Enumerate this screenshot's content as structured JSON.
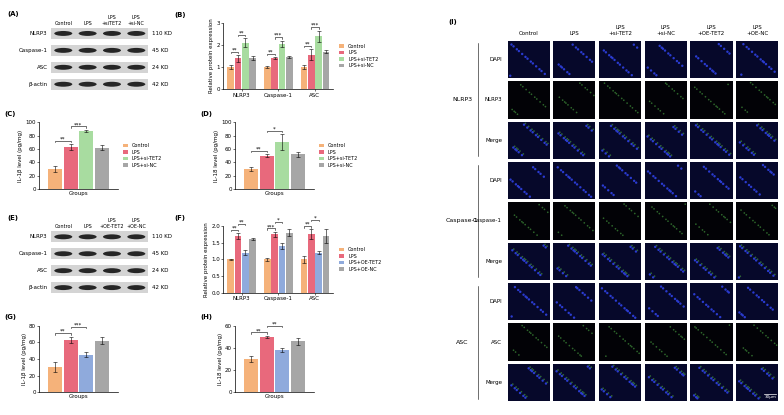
{
  "blots": [
    {
      "label": "(A)",
      "lanes": [
        "Control",
        "LPS",
        "LPS\n+siTET2",
        "LPS\n+si-NC"
      ],
      "proteins": [
        {
          "name": "NLRP3",
          "size": "110 KD"
        },
        {
          "name": "Caspase-1",
          "size": "45 KD"
        },
        {
          "name": "ASC",
          "size": "24 KD"
        },
        {
          "name": "β-actin",
          "size": "42 KD"
        }
      ]
    },
    {
      "label": "(E)",
      "lanes": [
        "Control",
        "LPS",
        "LPS\n+OE-TET2",
        "LPS\n+OE-NC"
      ],
      "proteins": [
        {
          "name": "NLRP3",
          "size": "110 KD"
        },
        {
          "name": "Caspase-1",
          "size": "45 KD"
        },
        {
          "name": "ASC",
          "size": "24 KD"
        },
        {
          "name": "β-actin",
          "size": "42 KD"
        }
      ]
    }
  ],
  "chart_data": [
    {
      "label": "(B)",
      "type": "bar",
      "categories": [
        "NLRP3",
        "Caspase-1",
        "ASC"
      ],
      "ylabel": "Relative protein expression",
      "ylim": [
        0,
        3
      ],
      "yticks": [
        0,
        1,
        2,
        3
      ],
      "legend": "right",
      "series": [
        {
          "name": "Control",
          "color": "#f5b27a",
          "values": [
            1.0,
            1.0,
            1.0
          ],
          "errors": [
            0.08,
            0.05,
            0.1
          ]
        },
        {
          "name": "LPS",
          "color": "#e8697c",
          "values": [
            1.4,
            1.4,
            1.55
          ],
          "errors": [
            0.15,
            0.05,
            0.25
          ]
        },
        {
          "name": "LPS+si-TET2",
          "color": "#a8dca0",
          "values": [
            2.1,
            2.05,
            2.4
          ],
          "errors": [
            0.2,
            0.15,
            0.25
          ]
        },
        {
          "name": "LPS+si-NC",
          "color": "#a6a6a6",
          "values": [
            1.4,
            1.45,
            1.7
          ],
          "errors": [
            0.1,
            0.05,
            0.05
          ]
        }
      ],
      "significance": [
        {
          "category": 0,
          "pair": [
            0,
            1
          ],
          "text": "**"
        },
        {
          "category": 0,
          "pair": [
            1,
            2
          ],
          "text": "**"
        },
        {
          "category": 1,
          "pair": [
            0,
            1
          ],
          "text": "**"
        },
        {
          "category": 1,
          "pair": [
            1,
            2
          ],
          "text": "***"
        },
        {
          "category": 2,
          "pair": [
            0,
            1
          ],
          "text": "**"
        },
        {
          "category": 2,
          "pair": [
            1,
            2
          ],
          "text": "***"
        }
      ]
    },
    {
      "label": "(C)",
      "type": "bar",
      "categories": [
        null
      ],
      "tick_labels": "y",
      "xlabel": "Groups",
      "ylabel": "IL-1β level (pg/mg)",
      "ylim": [
        0,
        100
      ],
      "yticks": [
        0,
        20,
        40,
        60,
        80,
        100
      ],
      "legend": "right",
      "series": [
        {
          "name": "Control",
          "color": "#f5b27a",
          "values": [
            30
          ],
          "errors": [
            5
          ]
        },
        {
          "name": "LPS",
          "color": "#e8697c",
          "values": [
            63
          ],
          "errors": [
            4
          ]
        },
        {
          "name": "LPS+si-TET2",
          "color": "#a8dca0",
          "values": [
            87
          ],
          "errors": [
            2
          ]
        },
        {
          "name": "LPS+si-NC",
          "color": "#a6a6a6",
          "values": [
            62
          ],
          "errors": [
            4
          ]
        }
      ],
      "significance": [
        {
          "category": 0,
          "pair": [
            0,
            1
          ],
          "text": "**"
        },
        {
          "category": 0,
          "pair": [
            1,
            2
          ],
          "text": "***"
        }
      ]
    },
    {
      "label": "(D)",
      "type": "bar",
      "categories": [
        null
      ],
      "tick_labels": "y",
      "xlabel": "Groups",
      "ylabel": "IL-18 level (pg/mg)",
      "ylim": [
        0,
        100
      ],
      "yticks": [
        0,
        20,
        40,
        60,
        80,
        100
      ],
      "legend": "right",
      "series": [
        {
          "name": "Control",
          "color": "#f5b27a",
          "values": [
            30
          ],
          "errors": [
            3
          ]
        },
        {
          "name": "LPS",
          "color": "#e8697c",
          "values": [
            50
          ],
          "errors": [
            2
          ]
        },
        {
          "name": "LPS+si-TET2",
          "color": "#a8dca0",
          "values": [
            70
          ],
          "errors": [
            12
          ]
        },
        {
          "name": "LPS+si-NC",
          "color": "#a6a6a6",
          "values": [
            52
          ],
          "errors": [
            4
          ]
        }
      ],
      "significance": [
        {
          "category": 0,
          "pair": [
            0,
            1
          ],
          "text": "**"
        },
        {
          "category": 0,
          "pair": [
            1,
            2
          ],
          "text": "*"
        }
      ]
    },
    {
      "label": "(F)",
      "type": "bar",
      "categories": [
        "NLRP3",
        "Caspase-1",
        "ASC"
      ],
      "ylabel": "Relative protein expression",
      "ylim": [
        0,
        2
      ],
      "yticks": [
        {
          "value": 0,
          "label": "0.0"
        },
        {
          "value": 0.5,
          "label": "0.5"
        },
        {
          "value": 1,
          "label": "1.0"
        },
        {
          "value": 1.5,
          "label": "1.5"
        },
        {
          "value": 2,
          "label": "2.0"
        }
      ],
      "legend": "right",
      "series": [
        {
          "name": "Control",
          "color": "#f5b27a",
          "values": [
            1.0,
            1.0,
            1.0
          ],
          "errors": [
            0.02,
            0.05,
            0.1
          ]
        },
        {
          "name": "LPS",
          "color": "#e8697c",
          "values": [
            1.7,
            1.75,
            1.75
          ],
          "errors": [
            0.08,
            0.08,
            0.15
          ]
        },
        {
          "name": "LPS+OE-TET2",
          "color": "#8faadc",
          "values": [
            1.2,
            1.4,
            1.2
          ],
          "errors": [
            0.08,
            0.1,
            0.05
          ]
        },
        {
          "name": "LPS+OE-NC",
          "color": "#a6a6a6",
          "values": [
            1.6,
            1.8,
            1.7
          ],
          "errors": [
            0.03,
            0.1,
            0.2
          ]
        }
      ],
      "significance": [
        {
          "category": 0,
          "pair": [
            0,
            1
          ],
          "text": "**"
        },
        {
          "category": 0,
          "pair": [
            1,
            2
          ],
          "text": "**"
        },
        {
          "category": 1,
          "pair": [
            0,
            1
          ],
          "text": "***"
        },
        {
          "category": 1,
          "pair": [
            1,
            2
          ],
          "text": "*"
        },
        {
          "category": 2,
          "pair": [
            0,
            1
          ],
          "text": "**"
        },
        {
          "category": 2,
          "pair": [
            1,
            2
          ],
          "text": "*"
        }
      ]
    },
    {
      "label": "(G)",
      "type": "bar",
      "categories": [
        null
      ],
      "tick_labels": "y",
      "xlabel": "Groups",
      "ylabel": "IL-1β level (pg/mg)",
      "ylim": [
        0,
        80
      ],
      "yticks": [
        0,
        20,
        40,
        60,
        80
      ],
      "series": [
        {
          "name": "Control",
          "color": "#f5b27a",
          "values": [
            30
          ],
          "errors": [
            6
          ]
        },
        {
          "name": "LPS",
          "color": "#e8697c",
          "values": [
            63
          ],
          "errors": [
            4
          ]
        },
        {
          "name": "LPS+OE-TET2",
          "color": "#8faadc",
          "values": [
            45
          ],
          "errors": [
            3
          ]
        },
        {
          "name": "LPS+OE-NC",
          "color": "#a6a6a6",
          "values": [
            62
          ],
          "errors": [
            4
          ]
        }
      ],
      "significance": [
        {
          "category": 0,
          "pair": [
            0,
            1
          ],
          "text": "**"
        },
        {
          "category": 0,
          "pair": [
            1,
            2
          ],
          "text": "***"
        }
      ]
    },
    {
      "label": "(H)",
      "type": "bar",
      "categories": [
        null
      ],
      "tick_labels": "y",
      "xlabel": "Groups",
      "ylabel": "IL-18 level (pg/mg)",
      "ylim": [
        0,
        60
      ],
      "yticks": [
        0,
        20,
        40,
        60
      ],
      "series": [
        {
          "name": "Control",
          "color": "#f5b27a",
          "values": [
            30
          ],
          "errors": [
            3
          ]
        },
        {
          "name": "LPS",
          "color": "#e8697c",
          "values": [
            50
          ],
          "errors": [
            1
          ]
        },
        {
          "name": "LPS+OE-TET2",
          "color": "#8faadc",
          "values": [
            38
          ],
          "errors": [
            2
          ]
        },
        {
          "name": "LPS+OE-NC",
          "color": "#a6a6a6",
          "values": [
            46
          ],
          "errors": [
            3
          ]
        }
      ],
      "significance": [
        {
          "category": 0,
          "pair": [
            0,
            1
          ],
          "text": "**"
        },
        {
          "category": 0,
          "pair": [
            1,
            2
          ],
          "text": "**"
        }
      ]
    }
  ],
  "microscopy": {
    "label": "(I)",
    "columns": [
      "Control",
      "LPS",
      "LPS\n+si-TET2",
      "LPS\n+si-NC",
      "LPS\n+OE-TET2",
      "LPS\n+OE-NC"
    ],
    "groups": [
      {
        "name": "NLRP3",
        "rows": [
          "DAPI",
          "NLRP3",
          "Merge"
        ]
      },
      {
        "name": "Caspase-1",
        "rows": [
          "DAPI",
          "Caspase-1",
          "Merge"
        ]
      },
      {
        "name": "ASC",
        "rows": [
          "DAPI",
          "ASC",
          "Merge"
        ]
      }
    ],
    "scale_bar": "30μm"
  }
}
